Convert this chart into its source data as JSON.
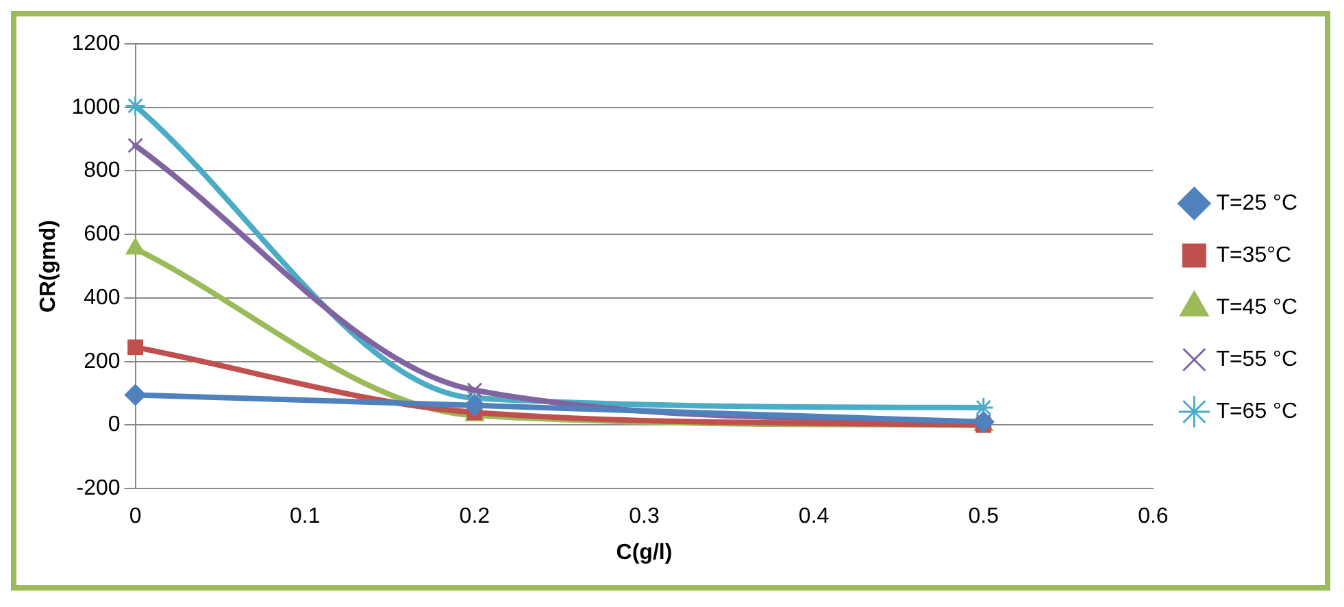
{
  "chart_data": {
    "type": "line",
    "xlabel": "C(g/l)",
    "ylabel": "CR(gmd)",
    "xlim": [
      0,
      0.6
    ],
    "xticks": [
      0,
      0.1,
      0.2,
      0.3,
      0.4,
      0.5,
      0.6
    ],
    "ylim": [
      -200,
      1200
    ],
    "yticks": [
      -200,
      0,
      200,
      400,
      600,
      800,
      1000,
      1200
    ],
    "grid": "y",
    "legend": "right",
    "x": [
      0,
      0.2,
      0.5
    ],
    "series": [
      {
        "name": "T=25 °C",
        "color": "#4f81bd",
        "marker": "diamond",
        "values": [
          95,
          62,
          10
        ]
      },
      {
        "name": "T=35°C",
        "color": "#c0504d",
        "marker": "square",
        "values": [
          245,
          40,
          0
        ]
      },
      {
        "name": "T=45 °C",
        "color": "#9bbb59",
        "marker": "triangle",
        "values": [
          555,
          30,
          0
        ]
      },
      {
        "name": "T=55 °C",
        "color": "#8064a2",
        "marker": "cross",
        "values": [
          880,
          110,
          10
        ]
      },
      {
        "name": "T=65 °C",
        "color": "#4bacc6",
        "marker": "cross",
        "values": [
          1005,
          85,
          55
        ]
      }
    ]
  }
}
